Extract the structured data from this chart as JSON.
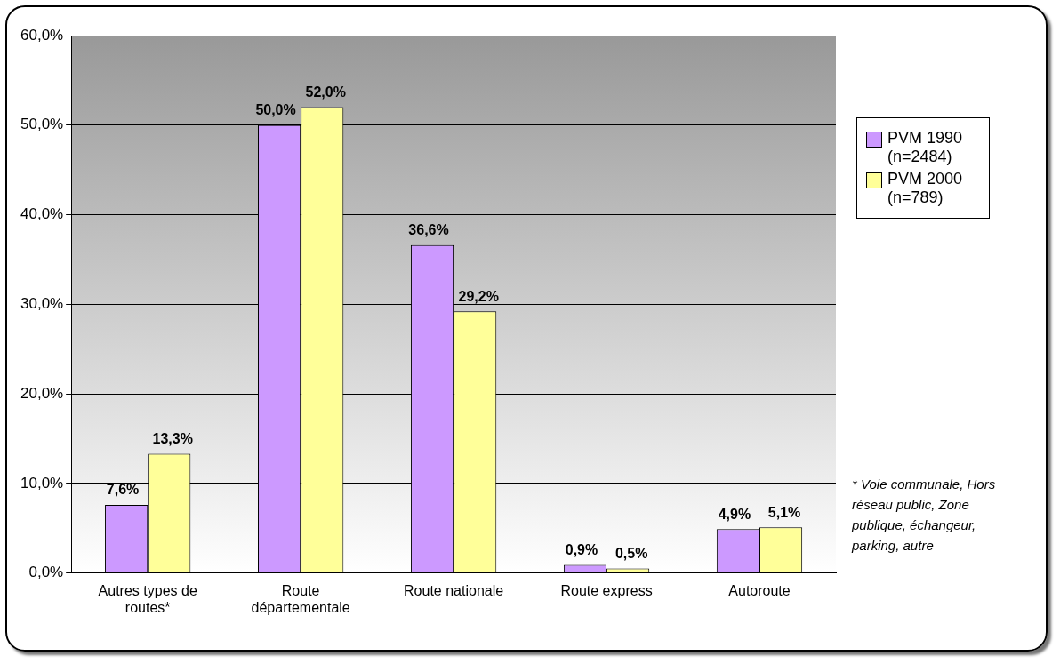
{
  "chart_data": {
    "type": "bar",
    "categories": [
      "Autres types de routes*",
      "Route départementale",
      "Route nationale",
      "Route express",
      "Autoroute"
    ],
    "series": [
      {
        "name": "PVM 1990 (n=2484)",
        "color": "#cc99ff",
        "values": [
          7.6,
          50.0,
          36.6,
          0.9,
          4.9
        ],
        "value_labels": [
          "7,6%",
          "50,0%",
          "36,6%",
          "0,9%",
          "4,9%"
        ]
      },
      {
        "name": "PVM 2000 (n=789)",
        "color": "#ffff99",
        "values": [
          13.3,
          52.0,
          29.2,
          0.5,
          5.1
        ],
        "value_labels": [
          "13,3%",
          "52,0%",
          "29,2%",
          "0,5%",
          "5,1%"
        ]
      }
    ],
    "ylim": [
      0,
      60
    ],
    "yticks": [
      {
        "value": 0,
        "label": "0,0%"
      },
      {
        "value": 10,
        "label": "10,0%"
      },
      {
        "value": 20,
        "label": "20,0%"
      },
      {
        "value": 30,
        "label": "30,0%"
      },
      {
        "value": 40,
        "label": "40,0%"
      },
      {
        "value": 50,
        "label": "50,0%"
      },
      {
        "value": 60,
        "label": "60,0%"
      }
    ],
    "grid": "y",
    "legend": "right",
    "annotations": [
      "* Voie communale, Hors réseau public, Zone publique, échangeur, parking, autre"
    ]
  }
}
